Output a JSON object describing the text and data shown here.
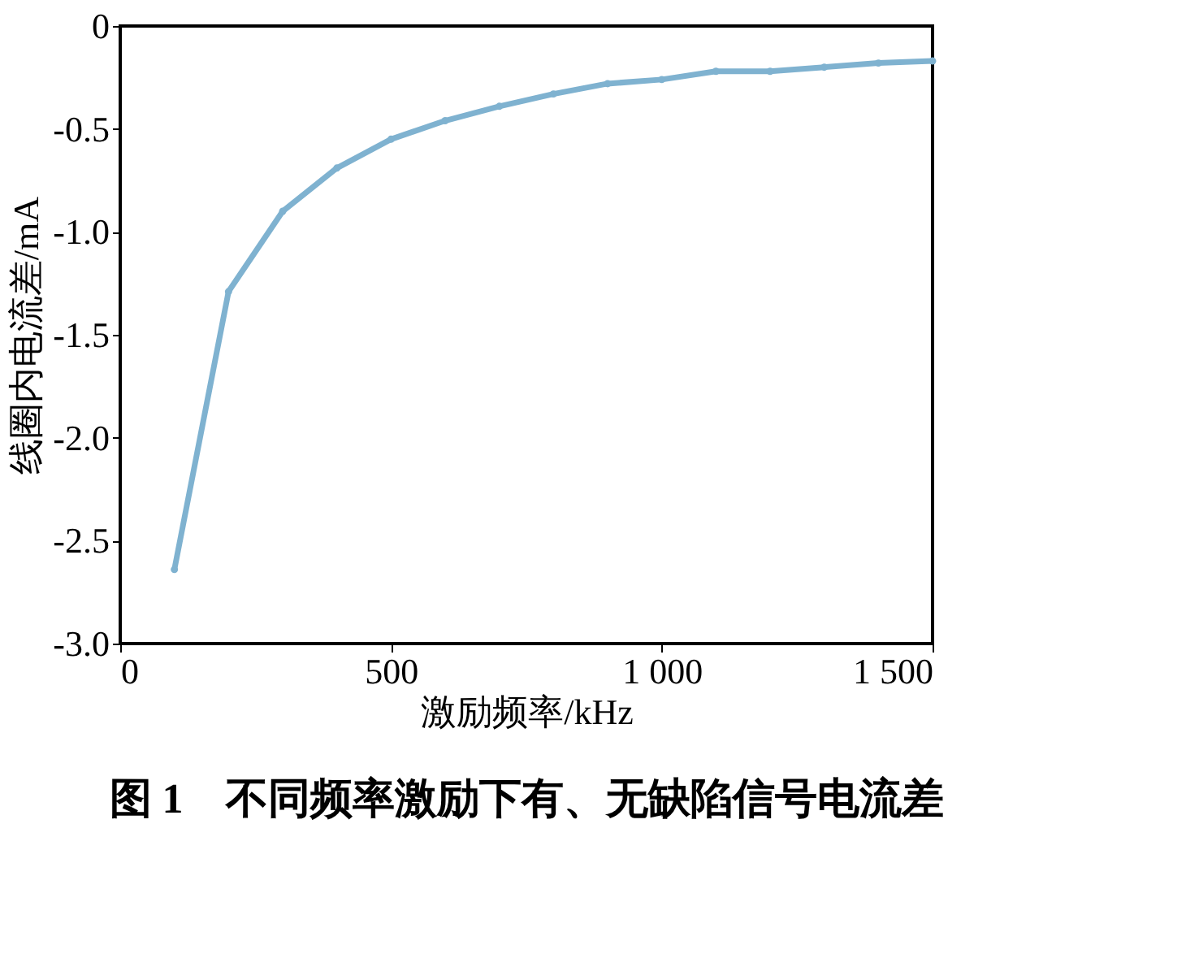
{
  "chart_data": {
    "type": "line",
    "title": "图 1　不同频率激励下有、无缺陷信号电流差",
    "xlabel": "激励频率/kHz",
    "ylabel": "线圈内电流差/mA",
    "x": [
      100,
      200,
      300,
      400,
      500,
      600,
      700,
      800,
      900,
      1000,
      1100,
      1200,
      1300,
      1400,
      1500
    ],
    "series": [
      {
        "color": "#7fb2d0",
        "values": [
          -2.64,
          -1.29,
          -0.9,
          -0.69,
          -0.55,
          -0.46,
          -0.39,
          -0.33,
          -0.28,
          -0.26,
          -0.22,
          -0.22,
          -0.2,
          -0.18,
          -0.17
        ]
      }
    ],
    "xlim": [
      0,
      1500
    ],
    "xticks": [
      0,
      500,
      {
        "value": 1000,
        "label": "1 000"
      },
      {
        "value": 1500,
        "label": "1 500"
      }
    ],
    "ylim": [
      -3,
      0
    ],
    "yticks": [
      {
        "value": -3,
        "label": "-3.0"
      },
      -2.5,
      {
        "value": -2,
        "label": "-2.0"
      },
      -1.5,
      {
        "value": -1,
        "label": "-1.0"
      },
      -0.5,
      0
    ],
    "marker": "circle",
    "line_style": "solid",
    "grid": false
  }
}
